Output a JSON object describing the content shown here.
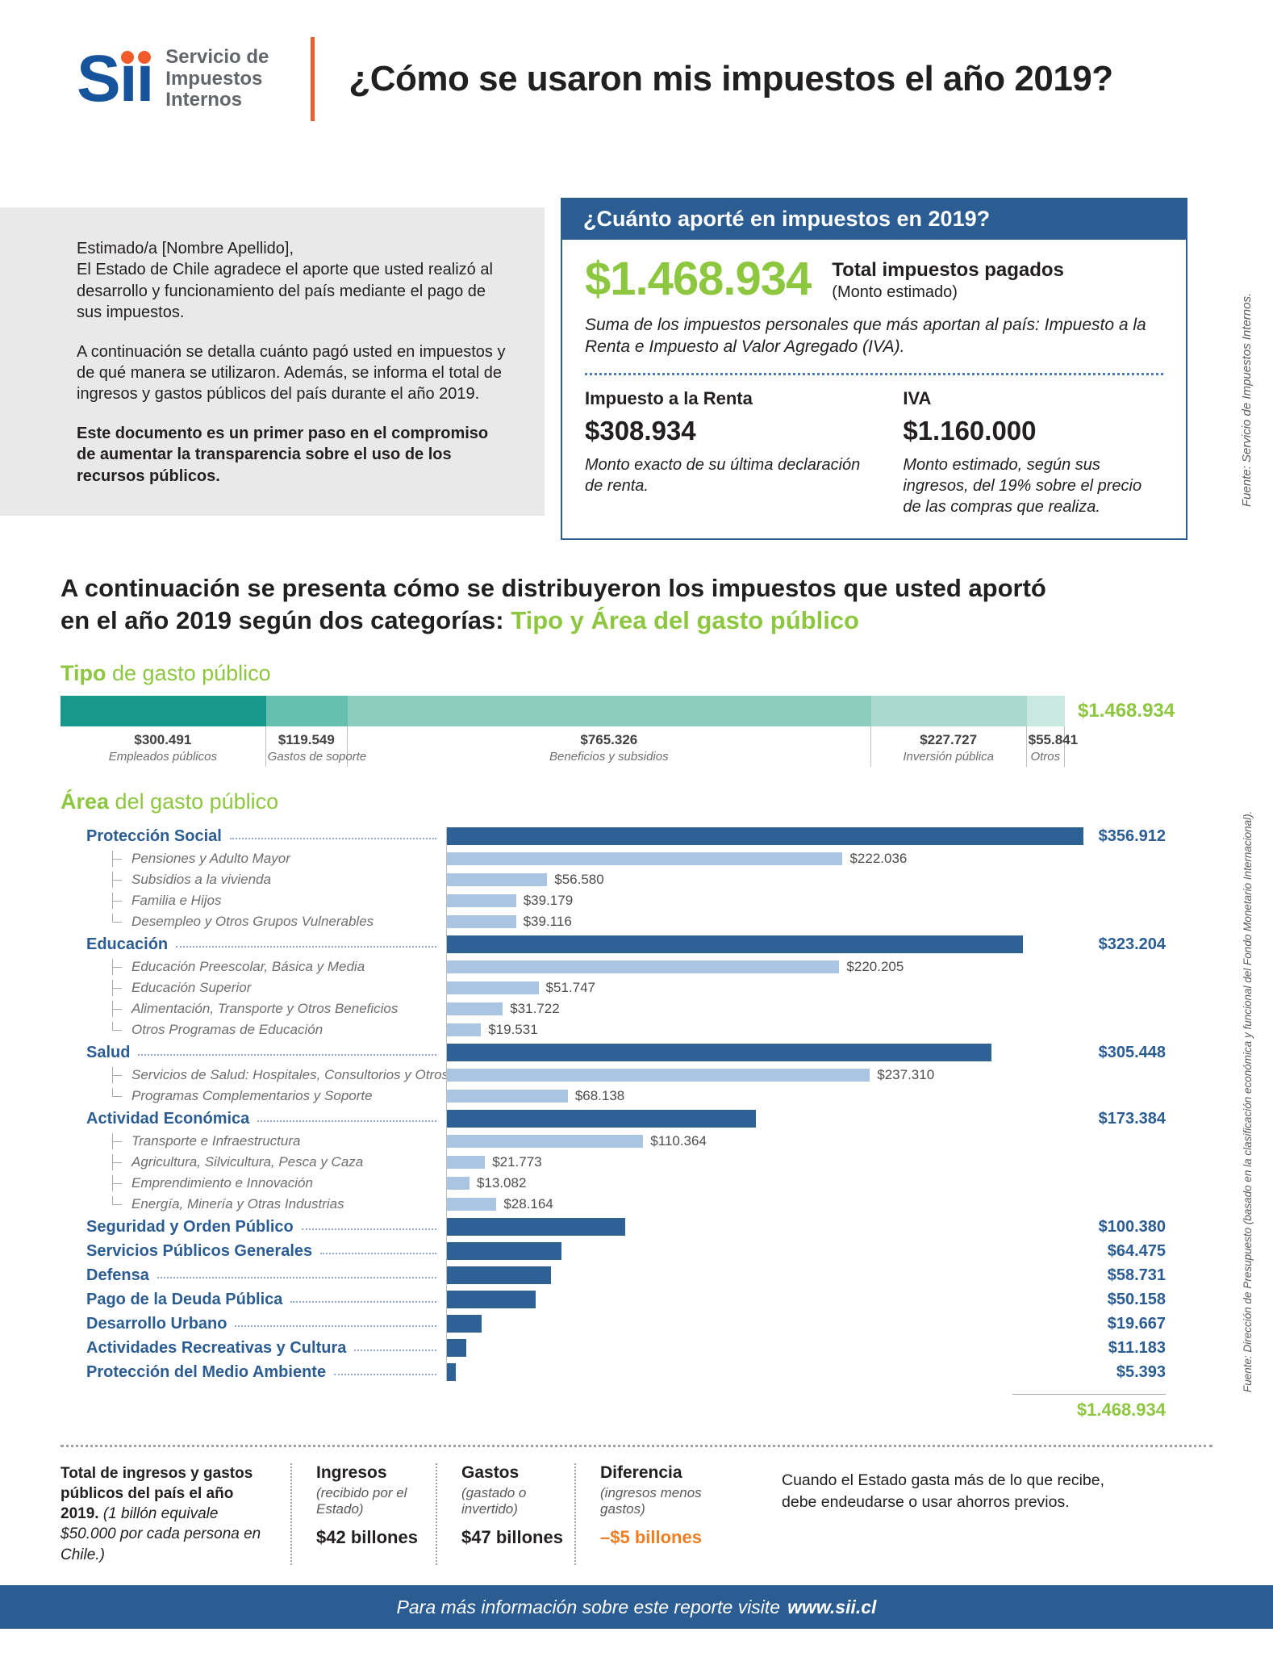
{
  "colors": {
    "brand_blue": "#2b5c92",
    "logo_blue": "#15549c",
    "accent_green": "#8dc63f",
    "divider_orange": "#e8612c",
    "deficit_orange": "#f07d22",
    "gray_box": "#e9e9e9",
    "main_bar_blue": "#2e6196",
    "sub_bar_blue": "#a9c5e1"
  },
  "header": {
    "logo_parts": [
      "S",
      "ı",
      "ı"
    ],
    "logo_subtitle": [
      "Servicio de",
      "Impuestos",
      "Internos"
    ],
    "title": "¿Cómo se usaron mis impuestos el año 2019?"
  },
  "greeting": {
    "p1_l1": "Estimado/a [Nombre Apellido],",
    "p1_rest": "El Estado de Chile agradece el aporte que usted realizó al desarrollo y funcionamiento del país mediante el pago de sus impuestos.",
    "p2": "A continuación se detalla cuánto pagó usted en impuestos y de qué manera se utilizaron. Además, se informa el total de ingresos y gastos públicos del país durante el año 2019.",
    "p3": "Este documento es un primer paso en el compromiso de aumentar la transparencia sobre el uso de los recursos públicos."
  },
  "tax_box": {
    "header": "¿Cuánto aporté en impuestos en 2019?",
    "total_amount": "$1.468.934",
    "total_label": "Total impuestos pagados",
    "total_sublabel": "(Monto estimado)",
    "description": "Suma de los impuestos personales que más aportan al país: Impuesto a la Renta e Impuesto al Valor Agregado (IVA).",
    "renta_label": "Impuesto a la Renta",
    "renta_amount": "$308.934",
    "renta_note": "Monto exacto de su última declaración de renta.",
    "iva_label": "IVA",
    "iva_amount": "$1.160.000",
    "iva_note": "Monto estimado, según sus ingresos, del 19% sobre el precio de las compras que realiza."
  },
  "sources": {
    "top": "Fuente: Servicio de Impuestos Internos.",
    "bottom": "Fuente: Dirección de Presupuesto (basado en la clasificación económica y funcional del Fondo Monetario Internacional)."
  },
  "intro": {
    "line1": "A continuación se presenta cómo se distribuyeron los impuestos que usted aportó",
    "line2_prefix": "en el año 2019 según dos categorías: ",
    "line2_highlight": "Tipo y Área del gasto público"
  },
  "chart_data": [
    {
      "type": "bar",
      "subtype": "stacked_horizontal",
      "title_bold": "Tipo",
      "title_rest": " de gasto público",
      "total_label": "$1.468.934",
      "total_value": 1468934,
      "segments": [
        {
          "label": "Empleados públicos",
          "amount": "$300.491",
          "value": 300491,
          "color": "#179a8b"
        },
        {
          "label": "Gastos de soporte",
          "amount": "$119.549",
          "value": 119549,
          "color": "#66c0af"
        },
        {
          "label": "Beneficios y subsidios",
          "amount": "$765.326",
          "value": 765326,
          "color": "#8ccdbf"
        },
        {
          "label": "Inversión pública",
          "amount": "$227.727",
          "value": 227727,
          "color": "#aadacf"
        },
        {
          "label": "Otros",
          "amount": "$55.841",
          "value": 55841,
          "color": "#c8e8e0"
        }
      ]
    },
    {
      "type": "bar",
      "subtype": "horizontal_grouped",
      "title_bold": "Área",
      "title_rest": " del gasto público",
      "max_value": 356912,
      "total_label": "$1.468.934",
      "total_value": 1468934,
      "rows": [
        {
          "type": "main",
          "label": "Protección Social",
          "amount": "$356.912",
          "value": 356912
        },
        {
          "type": "sub",
          "label": "Pensiones y Adulto Mayor",
          "amount": "$222.036",
          "value": 222036
        },
        {
          "type": "sub",
          "label": "Subsidios a la vivienda",
          "amount": "$56.580",
          "value": 56580
        },
        {
          "type": "sub",
          "label": "Familia e Hijos",
          "amount": "$39.179",
          "value": 39179
        },
        {
          "type": "sub",
          "label": "Desempleo y Otros Grupos Vulnerables",
          "amount": "$39.116",
          "value": 39116
        },
        {
          "type": "main",
          "label": "Educación",
          "amount": "$323.204",
          "value": 323204
        },
        {
          "type": "sub",
          "label": "Educación Preescolar, Básica y Media",
          "amount": "$220.205",
          "value": 220205
        },
        {
          "type": "sub",
          "label": "Educación Superior",
          "amount": "$51.747",
          "value": 51747
        },
        {
          "type": "sub",
          "label": "Alimentación, Transporte y Otros Beneficios",
          "amount": "$31.722",
          "value": 31722
        },
        {
          "type": "sub",
          "label": "Otros Programas de Educación",
          "amount": "$19.531",
          "value": 19531
        },
        {
          "type": "main",
          "label": "Salud",
          "amount": "$305.448",
          "value": 305448
        },
        {
          "type": "sub",
          "label": "Servicios de Salud: Hospitales, Consultorios y Otros",
          "amount": "$237.310",
          "value": 237310
        },
        {
          "type": "sub",
          "label": "Programas Complementarios y Soporte",
          "amount": "$68.138",
          "value": 68138
        },
        {
          "type": "main",
          "label": "Actividad Económica",
          "amount": "$173.384",
          "value": 173384
        },
        {
          "type": "sub",
          "label": "Transporte e Infraestructura",
          "amount": "$110.364",
          "value": 110364
        },
        {
          "type": "sub",
          "label": "Agricultura, Silvicultura, Pesca y Caza",
          "amount": "$21.773",
          "value": 21773
        },
        {
          "type": "sub",
          "label": "Emprendimiento e Innovación",
          "amount": "$13.082",
          "value": 13082
        },
        {
          "type": "sub",
          "label": "Energía, Minería y Otras Industrias",
          "amount": "$28.164",
          "value": 28164
        },
        {
          "type": "main",
          "label": "Seguridad y Orden Público",
          "amount": "$100.380",
          "value": 100380
        },
        {
          "type": "main",
          "label": "Servicios Públicos Generales",
          "amount": "$64.475",
          "value": 64475
        },
        {
          "type": "main",
          "label": "Defensa",
          "amount": "$58.731",
          "value": 58731
        },
        {
          "type": "main",
          "label": "Pago de la Deuda Pública",
          "amount": "$50.158",
          "value": 50158
        },
        {
          "type": "main",
          "label": "Desarrollo Urbano",
          "amount": "$19.667",
          "value": 19667
        },
        {
          "type": "main",
          "label": "Actividades Recreativas y Cultura",
          "amount": "$11.183",
          "value": 11183
        },
        {
          "type": "main",
          "label": "Protección del Medio Ambiente",
          "amount": "$5.393",
          "value": 5393
        }
      ]
    }
  ],
  "totals_section": {
    "intro_bold": "Total de ingresos y gastos públicos del país el año 2019.",
    "intro_note": " (1 billón equivale $50.000 por cada persona en Chile.)",
    "cols": [
      {
        "label": "Ingresos",
        "sub": "(recibido por el Estado)",
        "value": "$42 billones"
      },
      {
        "label": "Gastos",
        "sub": "(gastado o invertido)",
        "value": "$47 billones"
      },
      {
        "label": "Diferencia",
        "sub": "(ingresos menos gastos)",
        "value": "–$5 billones"
      }
    ],
    "note": "Cuando el Estado gasta más de lo que recibe, debe endeudarse o usar ahorros previos."
  },
  "footer": {
    "text_prefix": "Para más información sobre este reporte visite",
    "link": "www.sii.cl"
  }
}
